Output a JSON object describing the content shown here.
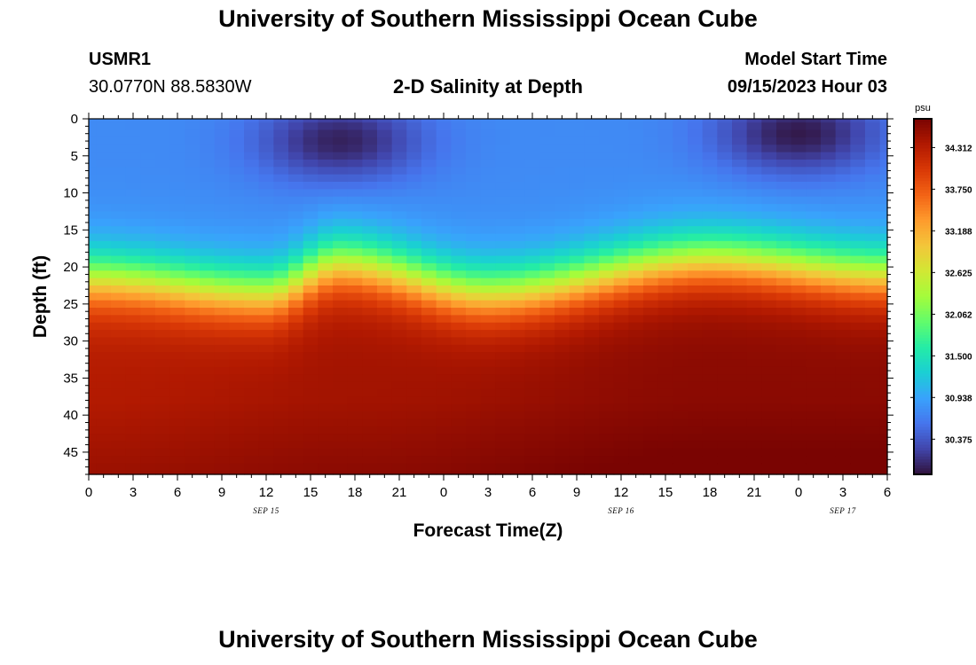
{
  "header": {
    "title": "University of Southern Mississippi Ocean Cube",
    "station_id": "USMR1",
    "station_coords": "30.0770N  88.5830W",
    "plot_title": "2-D Salinity at Depth",
    "model_start_label": "Model Start Time",
    "model_start_value": "09/15/2023 Hour 03"
  },
  "footer": {
    "title": "University of Southern Mississippi Ocean Cube"
  },
  "chart_data": {
    "type": "heatmap",
    "title": "2-D Salinity at Depth",
    "xlabel": "Forecast Time(Z)",
    "ylabel": "Depth (ft)",
    "x_range_hours": [
      0,
      54
    ],
    "x_ticks_hours": [
      0,
      3,
      6,
      9,
      12,
      15,
      18,
      21,
      24,
      27,
      30,
      33,
      36,
      39,
      42,
      45,
      48,
      51,
      54
    ],
    "x_tick_labels": [
      "0",
      "3",
      "6",
      "9",
      "12",
      "15",
      "18",
      "21",
      "0",
      "3",
      "6",
      "9",
      "12",
      "15",
      "18",
      "21",
      "0",
      "3",
      "6"
    ],
    "date_labels": [
      {
        "hour": 12,
        "text": "SEP 15"
      },
      {
        "hour": 36,
        "text": "SEP 16"
      },
      {
        "hour": 51,
        "text": "SEP 17"
      }
    ],
    "y_range_ft": [
      0,
      48
    ],
    "y_ticks_ft": [
      0,
      5,
      10,
      15,
      20,
      25,
      30,
      35,
      40,
      45
    ],
    "y_tick_labels": [
      "0",
      "5",
      "10",
      "15",
      "20",
      "25",
      "30",
      "35",
      "40",
      "45"
    ],
    "colorbar": {
      "unit": "psu",
      "range": [
        29.9,
        34.7
      ],
      "tick_labels": [
        "34.312",
        "33.750",
        "33.188",
        "32.625",
        "32.062",
        "31.500",
        "30.938",
        "30.375"
      ],
      "tick_values": [
        34.312,
        33.75,
        33.188,
        32.625,
        32.062,
        31.5,
        30.938,
        30.375
      ]
    },
    "colors": {
      "scale": [
        "#30123b",
        "#4145ab",
        "#4675ed",
        "#39a2fc",
        "#1bcfd4",
        "#24eca6",
        "#61fc6c",
        "#a4fc3b",
        "#d1e834",
        "#f3c63a",
        "#fe9b2d",
        "#f36315",
        "#d93806",
        "#b11901",
        "#7a0402"
      ]
    },
    "grid": {
      "n_time": 55,
      "n_depth": 49,
      "time_step_hours": 1,
      "depth_step_ft": 1
    },
    "salinity_profile_model": {
      "surface_base": 30.75,
      "bottom_base": 34.05,
      "halocline_center_ft": 19.5,
      "halocline_width_ft": 4.0,
      "halocline_oscillation": [
        {
          "hour": 0,
          "center_ft": 21.5
        },
        {
          "hour": 12,
          "center_ft": 23.5
        },
        {
          "hour": 17,
          "center_ft": 19.5
        },
        {
          "hour": 27,
          "center_ft": 23.5
        },
        {
          "hour": 42,
          "center_ft": 19.0
        },
        {
          "hour": 54,
          "center_ft": 21.0
        }
      ],
      "surface_minima": [
        {
          "hour": 17,
          "depth_ft": 3,
          "value": 30.0
        },
        {
          "hour": 48,
          "depth_ft": 2,
          "value": 29.95
        }
      ],
      "bottom_maxima": [
        {
          "hour": 0,
          "value": 34.35
        },
        {
          "hour": 18,
          "value": 34.45
        },
        {
          "hour": 42,
          "value": 34.6
        }
      ]
    }
  }
}
